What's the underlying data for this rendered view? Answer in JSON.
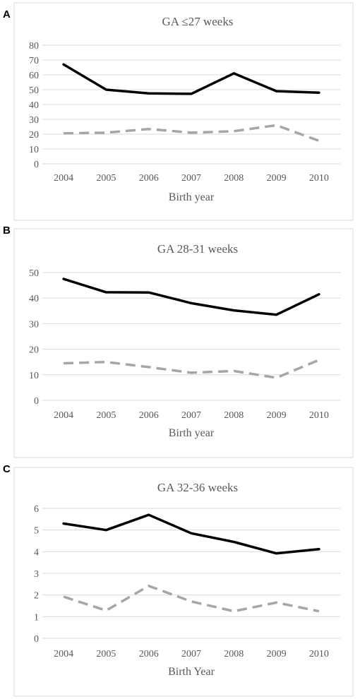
{
  "panels": [
    {
      "letter": "A"
    },
    {
      "letter": "B"
    },
    {
      "letter": "C"
    }
  ],
  "chart_data": [
    {
      "type": "line",
      "title": "GA ≤27 weeks",
      "xlabel": "Birth year",
      "ylabel": "",
      "categories": [
        "2004",
        "2005",
        "2006",
        "2007",
        "2008",
        "2009",
        "2010"
      ],
      "ylim": [
        0,
        80
      ],
      "yticks": [
        0,
        10,
        20,
        30,
        40,
        50,
        60,
        70,
        80
      ],
      "grid": true,
      "series": [
        {
          "style": "solid",
          "color": "#000000",
          "values": [
            67,
            50,
            47.5,
            47.2,
            61,
            49,
            48
          ]
        },
        {
          "style": "dashed",
          "color": "#a6a6a6",
          "values": [
            20.5,
            21,
            23.5,
            21,
            22,
            26,
            15.5
          ]
        }
      ]
    },
    {
      "type": "line",
      "title": "GA 28-31 weeks",
      "xlabel": "Birth year",
      "ylabel": "",
      "categories": [
        "2004",
        "2005",
        "2006",
        "2007",
        "2008",
        "2009",
        "2010"
      ],
      "ylim": [
        0,
        50
      ],
      "yticks": [
        0,
        10,
        20,
        30,
        40,
        50
      ],
      "grid": true,
      "series": [
        {
          "style": "solid",
          "color": "#000000",
          "values": [
            47.5,
            42.3,
            42.2,
            38,
            35.2,
            33.5,
            41.5
          ]
        },
        {
          "style": "dashed",
          "color": "#a6a6a6",
          "values": [
            14.5,
            15,
            13,
            10.8,
            11.5,
            8.8,
            15.8
          ]
        }
      ]
    },
    {
      "type": "line",
      "title": "GA 32-36 weeks",
      "xlabel": "Birth Year",
      "ylabel": "",
      "categories": [
        "2004",
        "2005",
        "2006",
        "2007",
        "2008",
        "2009",
        "2010"
      ],
      "ylim": [
        0,
        6
      ],
      "yticks": [
        0,
        1,
        2,
        3,
        4,
        5,
        6
      ],
      "grid": true,
      "series": [
        {
          "style": "solid",
          "color": "#000000",
          "values": [
            5.3,
            5.0,
            5.7,
            4.85,
            4.45,
            3.92,
            4.12
          ]
        },
        {
          "style": "dashed",
          "color": "#a6a6a6",
          "values": [
            1.92,
            1.28,
            2.42,
            1.7,
            1.25,
            1.65,
            1.25
          ]
        }
      ]
    }
  ]
}
